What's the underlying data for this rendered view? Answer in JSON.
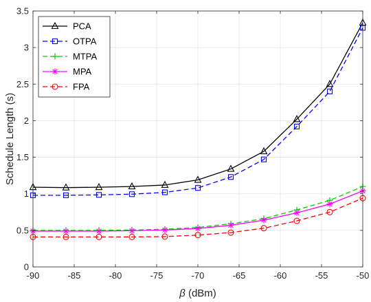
{
  "chart_data": {
    "type": "line",
    "xlabel_symbol": "β",
    "xlabel_unit": " (dBm)",
    "ylabel": "Schedule Length (s)",
    "xlim": [
      -90,
      -50
    ],
    "ylim": [
      0,
      3.5
    ],
    "grid": true,
    "legend_position": "top-left",
    "x": [
      -90,
      -86,
      -82,
      -78,
      -74,
      -70,
      -66,
      -62,
      -58,
      -54,
      -50
    ],
    "x_ticks": [
      -90,
      -85,
      -80,
      -75,
      -70,
      -65,
      -60,
      -55,
      -50
    ],
    "x_tick_labels": [
      "-90",
      "-85",
      "-80",
      "-75",
      "-70",
      "-65",
      "-60",
      "-55",
      "-50"
    ],
    "y_ticks": [
      0,
      0.5,
      1,
      1.5,
      2,
      2.5,
      3,
      3.5
    ],
    "y_tick_labels": [
      "0",
      "0.5",
      "1",
      "1.5",
      "2",
      "2.5",
      "3",
      "3.5"
    ],
    "series": [
      {
        "name": "PCA",
        "color": "#000000",
        "dash": "solid",
        "marker": "triangle",
        "values": [
          1.09,
          1.085,
          1.09,
          1.1,
          1.12,
          1.19,
          1.34,
          1.58,
          2.02,
          2.5,
          3.34
        ]
      },
      {
        "name": "OTPA",
        "color": "#0000ff",
        "dash": "dashed",
        "marker": "square",
        "values": [
          0.98,
          0.98,
          0.985,
          0.995,
          1.02,
          1.08,
          1.23,
          1.47,
          1.92,
          2.4,
          3.27
        ]
      },
      {
        "name": "MTPA",
        "color": "#00cc00",
        "dash": "dashed",
        "marker": "plus",
        "values": [
          0.5,
          0.5,
          0.5,
          0.505,
          0.515,
          0.54,
          0.59,
          0.66,
          0.78,
          0.91,
          1.1
        ]
      },
      {
        "name": "MPA",
        "color": "#ff00ff",
        "dash": "solid",
        "marker": "star",
        "values": [
          0.49,
          0.49,
          0.49,
          0.495,
          0.505,
          0.525,
          0.57,
          0.64,
          0.74,
          0.86,
          1.04
        ]
      },
      {
        "name": "FPA",
        "color": "#ff0000",
        "dash": "dashed",
        "marker": "circle",
        "values": [
          0.41,
          0.41,
          0.41,
          0.41,
          0.415,
          0.435,
          0.47,
          0.53,
          0.63,
          0.75,
          0.94
        ]
      }
    ]
  }
}
